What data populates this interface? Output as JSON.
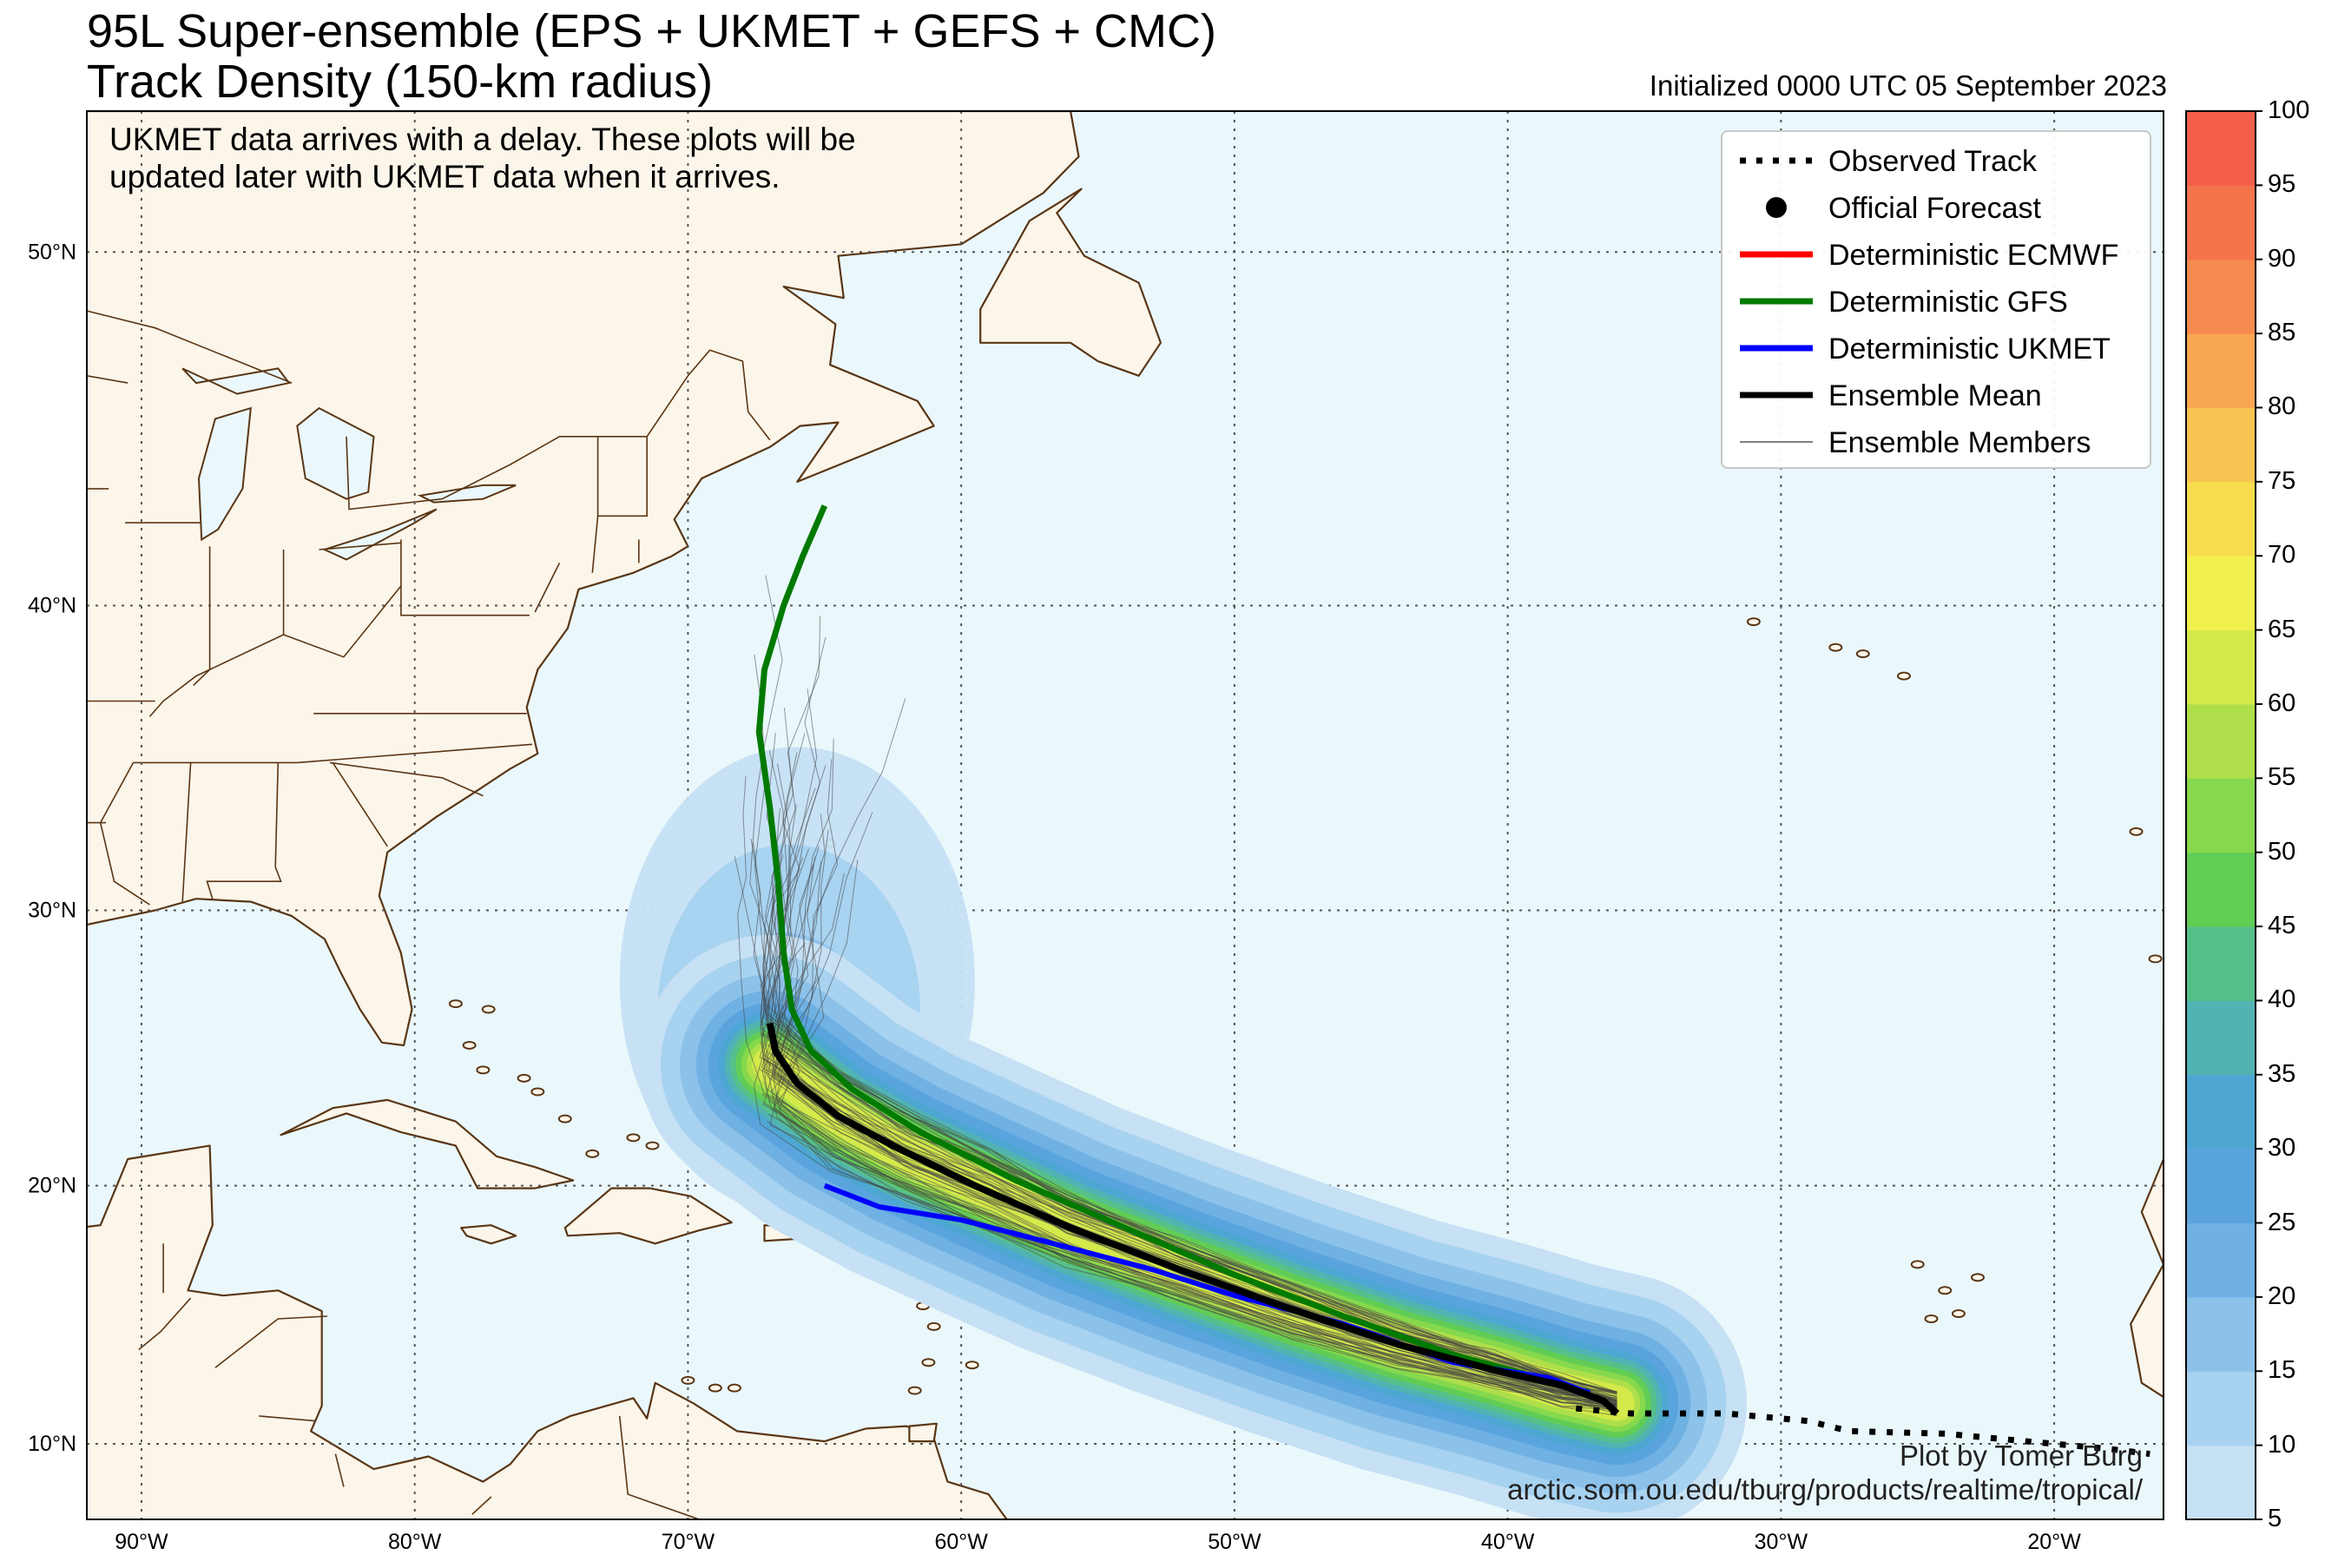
{
  "title": {
    "line1": "95L Super-ensemble (EPS + UKMET + GEFS + CMC)",
    "line2": "Track Density (150-km radius)",
    "initialized": "Initialized 0000 UTC 05 September 2023"
  },
  "note": {
    "line1": "UKMET data arrives with a delay. These plots will be",
    "line2": "updated later with UKMET data when it arrives."
  },
  "credit": {
    "line1": "Plot by Tomer Burg",
    "line2": "arctic.som.ou.edu/tburg/products/realtime/tropical/"
  },
  "legend": [
    {
      "label": "Observed Track",
      "style": "dotted",
      "color": "#000000"
    },
    {
      "label": "Official Forecast",
      "style": "dot",
      "color": "#000000"
    },
    {
      "label": "Deterministic ECMWF",
      "style": "line",
      "color": "#ff0000"
    },
    {
      "label": "Deterministic GFS",
      "style": "line",
      "color": "#007a00"
    },
    {
      "label": "Deterministic UKMET",
      "style": "line",
      "color": "#0000ff"
    },
    {
      "label": "Ensemble Mean",
      "style": "line",
      "color": "#000000"
    },
    {
      "label": "Ensemble Members",
      "style": "thin",
      "color": "#555555"
    }
  ],
  "colors": {
    "ocean": "#eaf8fc",
    "land": "#fcf5e9",
    "coast": "#5a3615",
    "gfs": "#007a00",
    "ukmet": "#0000ff",
    "mean": "#000000"
  },
  "map": {
    "lon_range": [
      -92,
      -16
    ],
    "lat_range": [
      7,
      53.5
    ],
    "lon_ticks": [
      -90,
      -80,
      -70,
      -60,
      -50,
      -40,
      -30,
      -20
    ],
    "lat_ticks": [
      10,
      20,
      30,
      40,
      50
    ],
    "lon_labels": [
      "90°W",
      "80°W",
      "70°W",
      "60°W",
      "50°W",
      "40°W",
      "30°W",
      "20°W"
    ],
    "lat_labels": [
      "10°N",
      "20°N",
      "30°N",
      "40°N",
      "50°N"
    ]
  },
  "colorbar": {
    "levels": [
      5,
      10,
      15,
      20,
      25,
      30,
      35,
      40,
      45,
      50,
      55,
      60,
      65,
      70,
      75,
      80,
      85,
      90,
      95,
      100
    ],
    "labels": [
      "5",
      "10",
      "15",
      "20",
      "25",
      "30",
      "35",
      "40",
      "45",
      "50",
      "55",
      "60",
      "65",
      "70",
      "75",
      "80",
      "85",
      "90",
      "95",
      "100"
    ],
    "colors": [
      "#c6e0f4",
      "#a7d2f0",
      "#8cc2ea",
      "#70b1e4",
      "#5aa4de",
      "#4da7d2",
      "#52b3b3",
      "#56c08a",
      "#62cd55",
      "#86d84c",
      "#aedf4a",
      "#d4e94a",
      "#f2f04e",
      "#f7dd4e",
      "#f8c452",
      "#f8a650",
      "#f78a4e",
      "#f6744c",
      "#f45f4a",
      "#f24a48"
    ]
  },
  "tracks": {
    "gfs": [
      [
        -65.0,
        43.0
      ],
      [
        -65.8,
        41.5
      ],
      [
        -66.5,
        40.0
      ],
      [
        -67.2,
        38.0
      ],
      [
        -67.4,
        36.0
      ],
      [
        -67.0,
        33.5
      ],
      [
        -66.7,
        31.0
      ],
      [
        -66.5,
        28.5
      ],
      [
        -66.2,
        26.5
      ],
      [
        -65.5,
        25.0
      ],
      [
        -64.0,
        23.6
      ],
      [
        -61.5,
        22.0
      ],
      [
        -58.0,
        20.2
      ],
      [
        -54.0,
        18.4
      ],
      [
        -50.0,
        16.6
      ],
      [
        -46.0,
        15.0
      ],
      [
        -42.0,
        13.5
      ],
      [
        -38.5,
        12.5
      ],
      [
        -37.0,
        12.0
      ]
    ],
    "ukmet": [
      [
        -65.0,
        20.0
      ],
      [
        -63.0,
        19.2
      ],
      [
        -60.0,
        18.7
      ],
      [
        -57.0,
        17.9
      ],
      [
        -53.0,
        16.8
      ],
      [
        -50.0,
        15.8
      ],
      [
        -46.0,
        14.7
      ],
      [
        -42.0,
        13.2
      ],
      [
        -38.5,
        12.6
      ],
      [
        -37.0,
        12.0
      ]
    ],
    "mean": [
      [
        -67.0,
        26.0
      ],
      [
        -66.8,
        25.0
      ],
      [
        -66.0,
        23.8
      ],
      [
        -64.5,
        22.6
      ],
      [
        -62.5,
        21.5
      ],
      [
        -59.5,
        20.0
      ],
      [
        -56.0,
        18.4
      ],
      [
        -52.0,
        16.8
      ],
      [
        -48.0,
        15.3
      ],
      [
        -44.0,
        13.9
      ],
      [
        -40.5,
        12.9
      ],
      [
        -38.0,
        12.3
      ],
      [
        -36.5,
        11.7
      ],
      [
        -36.0,
        11.2
      ]
    ],
    "observed": [
      [
        -37.5,
        11.4
      ],
      [
        -35.5,
        11.2
      ],
      [
        -32.0,
        11.2
      ],
      [
        -29.0,
        10.9
      ],
      [
        -27.5,
        10.5
      ],
      [
        -24.0,
        10.4
      ],
      [
        -21.0,
        10.1
      ],
      [
        -18.0,
        9.8
      ],
      [
        -16.5,
        9.6
      ]
    ]
  },
  "density": {
    "centerline": [
      [
        -67.0,
        24.5
      ],
      [
        -64.5,
        22.6
      ],
      [
        -62.0,
        21.2
      ],
      [
        -59.0,
        19.8
      ],
      [
        -56.0,
        18.4
      ],
      [
        -52.0,
        16.8
      ],
      [
        -48.0,
        15.3
      ],
      [
        -44.0,
        13.9
      ],
      [
        -40.5,
        12.9
      ],
      [
        -38.0,
        12.1
      ],
      [
        -36.0,
        11.6
      ]
    ],
    "bands": [
      {
        "level": 5,
        "width_deg": 9.5
      },
      {
        "level": 10,
        "width_deg": 8.0
      },
      {
        "level": 15,
        "width_deg": 6.6
      },
      {
        "level": 20,
        "width_deg": 5.4
      },
      {
        "level": 25,
        "width_deg": 4.5
      },
      {
        "level": 30,
        "width_deg": 3.8
      },
      {
        "level": 35,
        "width_deg": 3.3
      },
      {
        "level": 40,
        "width_deg": 2.9
      },
      {
        "level": 45,
        "width_deg": 2.5
      },
      {
        "level": 50,
        "width_deg": 2.1
      },
      {
        "level": 55,
        "width_deg": 1.7
      },
      {
        "level": 60,
        "width_deg": 1.3
      }
    ]
  }
}
